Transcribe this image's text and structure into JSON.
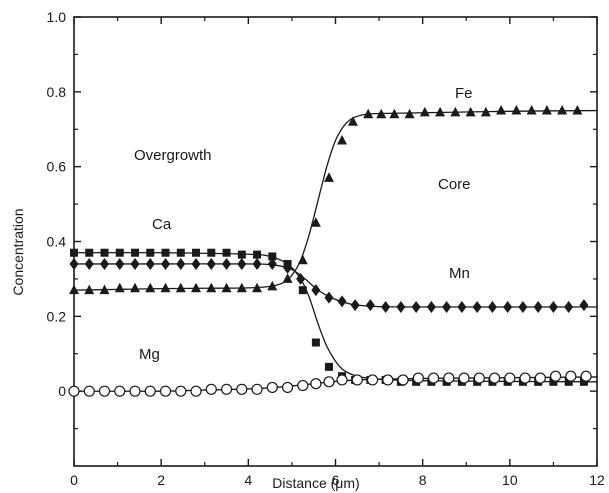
{
  "chart_data": {
    "type": "scatter",
    "xlabel": "Distance (μm)",
    "ylabel": "Concentration",
    "xlim": [
      0,
      12
    ],
    "ylim": [
      -0.2,
      1.0
    ],
    "x_ticks": [
      "0",
      "2",
      "4",
      "6",
      "8",
      "10",
      "12"
    ],
    "y_ticks": [
      "0",
      "0.2",
      "0.4",
      "0.6",
      "0.8",
      "1.0"
    ],
    "annotations": {
      "overgrowth": "Overgrowth",
      "core": "Core"
    },
    "series": [
      {
        "name": "Fe",
        "marker": "triangle",
        "x": [
          0,
          0.35,
          0.7,
          1.05,
          1.4,
          1.75,
          2.1,
          2.45,
          2.8,
          3.15,
          3.5,
          3.85,
          4.2,
          4.55,
          4.9,
          5.25,
          5.55,
          5.85,
          6.15,
          6.4,
          6.75,
          7.05,
          7.35,
          7.7,
          8.05,
          8.4,
          8.75,
          9.1,
          9.45,
          9.8,
          10.15,
          10.5,
          10.85,
          11.2,
          11.55
        ],
        "y": [
          0.27,
          0.27,
          0.27,
          0.275,
          0.275,
          0.275,
          0.275,
          0.275,
          0.275,
          0.275,
          0.275,
          0.275,
          0.275,
          0.28,
          0.3,
          0.35,
          0.45,
          0.57,
          0.67,
          0.72,
          0.74,
          0.74,
          0.74,
          0.74,
          0.745,
          0.745,
          0.745,
          0.745,
          0.745,
          0.75,
          0.75,
          0.75,
          0.75,
          0.75,
          0.75
        ],
        "curve_x": [
          0,
          1,
          2,
          3,
          4,
          4.5,
          4.8,
          5.0,
          5.2,
          5.4,
          5.6,
          5.8,
          6.0,
          6.2,
          6.4,
          6.7,
          7.0,
          8,
          10,
          12
        ],
        "curve_y": [
          0.27,
          0.272,
          0.274,
          0.275,
          0.276,
          0.28,
          0.29,
          0.31,
          0.35,
          0.42,
          0.51,
          0.6,
          0.67,
          0.71,
          0.73,
          0.74,
          0.742,
          0.744,
          0.748,
          0.75
        ]
      },
      {
        "name": "Mn",
        "marker": "diamond",
        "x": [
          0,
          0.35,
          0.7,
          1.05,
          1.4,
          1.75,
          2.1,
          2.45,
          2.8,
          3.15,
          3.5,
          3.85,
          4.2,
          4.55,
          4.9,
          5.2,
          5.55,
          5.85,
          6.15,
          6.45,
          6.8,
          7.15,
          7.5,
          7.85,
          8.2,
          8.55,
          8.9,
          9.25,
          9.6,
          9.95,
          10.3,
          10.65,
          11.0,
          11.35,
          11.7
        ],
        "y": [
          0.34,
          0.34,
          0.34,
          0.34,
          0.34,
          0.34,
          0.34,
          0.34,
          0.34,
          0.34,
          0.34,
          0.34,
          0.34,
          0.34,
          0.33,
          0.3,
          0.27,
          0.25,
          0.24,
          0.23,
          0.23,
          0.225,
          0.225,
          0.225,
          0.225,
          0.225,
          0.225,
          0.225,
          0.225,
          0.225,
          0.225,
          0.225,
          0.225,
          0.225,
          0.23
        ],
        "curve_x": [
          0,
          2,
          4,
          4.6,
          5.0,
          5.3,
          5.6,
          5.9,
          6.2,
          6.5,
          7.0,
          8,
          10,
          12
        ],
        "curve_y": [
          0.34,
          0.34,
          0.34,
          0.337,
          0.325,
          0.3,
          0.27,
          0.25,
          0.237,
          0.23,
          0.226,
          0.225,
          0.225,
          0.225
        ]
      },
      {
        "name": "Ca",
        "marker": "square",
        "x": [
          0,
          0.35,
          0.7,
          1.05,
          1.4,
          1.75,
          2.1,
          2.45,
          2.8,
          3.15,
          3.5,
          3.85,
          4.2,
          4.55,
          4.9,
          5.25,
          5.55,
          5.85,
          6.15,
          6.45,
          6.8,
          7.15,
          7.5,
          7.85,
          8.2,
          8.55,
          8.9,
          9.25,
          9.6,
          9.95,
          10.3,
          10.65,
          11.0,
          11.35,
          11.7
        ],
        "y": [
          0.37,
          0.37,
          0.37,
          0.37,
          0.37,
          0.37,
          0.37,
          0.37,
          0.37,
          0.37,
          0.37,
          0.365,
          0.365,
          0.36,
          0.34,
          0.27,
          0.13,
          0.065,
          0.04,
          0.03,
          0.03,
          0.03,
          0.025,
          0.025,
          0.025,
          0.025,
          0.025,
          0.025,
          0.025,
          0.025,
          0.025,
          0.025,
          0.025,
          0.025,
          0.025
        ],
        "curve_x": [
          0,
          2,
          4,
          4.5,
          4.9,
          5.2,
          5.4,
          5.6,
          5.8,
          6.0,
          6.2,
          6.5,
          7.0,
          8,
          10,
          12
        ],
        "curve_y": [
          0.37,
          0.37,
          0.366,
          0.36,
          0.34,
          0.3,
          0.25,
          0.18,
          0.12,
          0.08,
          0.055,
          0.04,
          0.032,
          0.028,
          0.026,
          0.025
        ]
      },
      {
        "name": "Mg",
        "marker": "circle",
        "x": [
          0,
          0.35,
          0.7,
          1.05,
          1.4,
          1.75,
          2.1,
          2.45,
          2.8,
          3.15,
          3.5,
          3.85,
          4.2,
          4.55,
          4.9,
          5.25,
          5.55,
          5.85,
          6.15,
          6.5,
          6.85,
          7.2,
          7.55,
          7.9,
          8.25,
          8.6,
          8.95,
          9.3,
          9.65,
          10.0,
          10.35,
          10.7,
          11.05,
          11.4,
          11.75
        ],
        "y": [
          0.0,
          0.0,
          0.0,
          0.0,
          0.0,
          0.0,
          0.0,
          0.0,
          0.0,
          0.005,
          0.005,
          0.005,
          0.005,
          0.01,
          0.01,
          0.015,
          0.02,
          0.025,
          0.03,
          0.03,
          0.03,
          0.03,
          0.03,
          0.035,
          0.035,
          0.035,
          0.035,
          0.035,
          0.035,
          0.035,
          0.035,
          0.035,
          0.04,
          0.04,
          0.04
        ],
        "curve_x": [
          0,
          2,
          3,
          4,
          4.5,
          5.0,
          5.5,
          6.0,
          6.5,
          7.0,
          8,
          10,
          12
        ],
        "curve_y": [
          0.0,
          0.0,
          0.003,
          0.006,
          0.009,
          0.014,
          0.02,
          0.026,
          0.03,
          0.032,
          0.034,
          0.036,
          0.038
        ]
      }
    ],
    "series_labels": {
      "Fe": "Fe",
      "Mn": "Mn",
      "Ca": "Ca",
      "Mg": "Mg"
    }
  }
}
